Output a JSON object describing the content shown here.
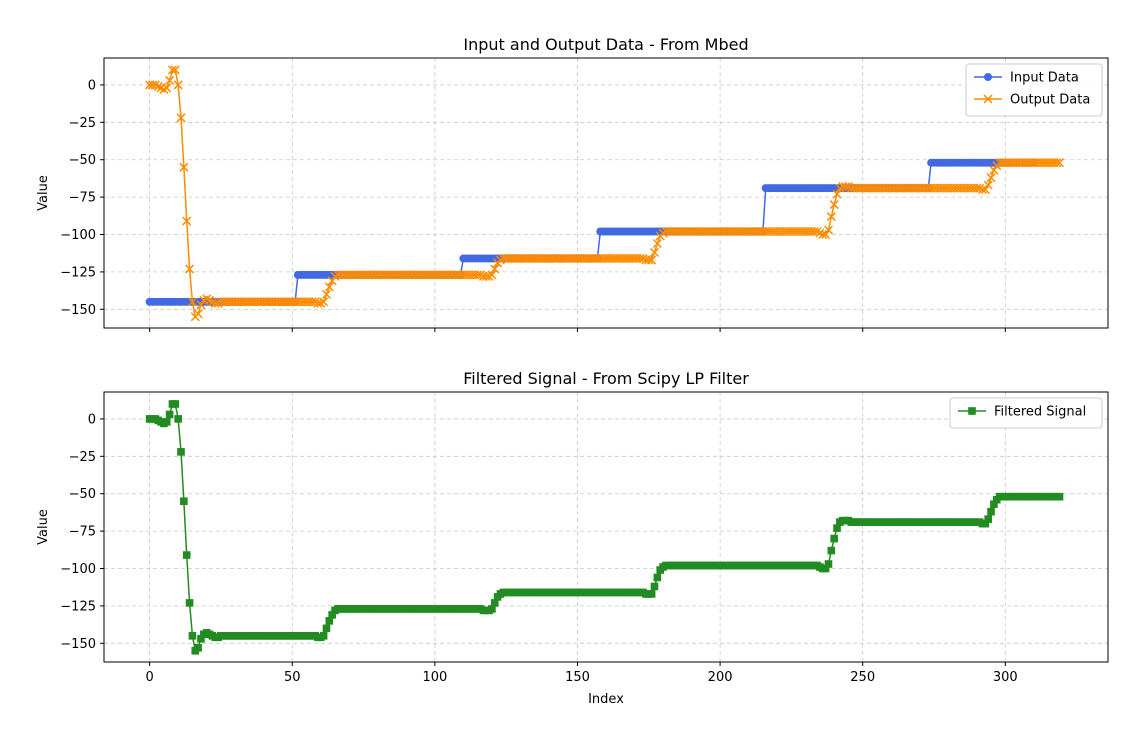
{
  "chart_data": [
    {
      "type": "line",
      "title": "Input and Output Data - From Mbed",
      "xlabel": "",
      "ylabel": "Value",
      "xlim": [
        -16,
        336
      ],
      "ylim": [
        -162.5,
        18
      ],
      "xticks": [
        0,
        50,
        100,
        150,
        200,
        250,
        300
      ],
      "xtick_labels_visible": false,
      "yticks": [
        0,
        -25,
        -50,
        -75,
        -100,
        -125,
        -150
      ],
      "grid": true,
      "legend": "top-right",
      "series": [
        {
          "name": "Input Data",
          "color": "#4169e1",
          "marker": "circle",
          "x_start": 0,
          "x_step": 1,
          "values": [
            -145,
            -145,
            -145,
            -145,
            -145,
            -145,
            -145,
            -145,
            -145,
            -145,
            -145,
            -145,
            -145,
            -145,
            -145,
            -145,
            -145,
            -145,
            -145,
            -145,
            -145,
            -145,
            -145,
            -145,
            -145,
            -145,
            -145,
            -145,
            -145,
            -145,
            -145,
            -145,
            -145,
            -145,
            -145,
            -145,
            -145,
            -145,
            -145,
            -145,
            -145,
            -145,
            -145,
            -145,
            -145,
            -145,
            -145,
            -145,
            -145,
            -145,
            -145,
            -145,
            -127,
            -127,
            -127,
            -127,
            -127,
            -127,
            -127,
            -127,
            -127,
            -127,
            -127,
            -127,
            -127,
            -127,
            -127,
            -127,
            -127,
            -127,
            -127,
            -127,
            -127,
            -127,
            -127,
            -127,
            -127,
            -127,
            -127,
            -127,
            -127,
            -127,
            -127,
            -127,
            -127,
            -127,
            -127,
            -127,
            -127,
            -127,
            -127,
            -127,
            -127,
            -127,
            -127,
            -127,
            -127,
            -127,
            -127,
            -127,
            -127,
            -127,
            -127,
            -127,
            -127,
            -127,
            -127,
            -127,
            -127,
            -127,
            -116,
            -116,
            -116,
            -116,
            -116,
            -116,
            -116,
            -116,
            -116,
            -116,
            -116,
            -116,
            -116,
            -116,
            -116,
            -116,
            -116,
            -116,
            -116,
            -116,
            -116,
            -116,
            -116,
            -116,
            -116,
            -116,
            -116,
            -116,
            -116,
            -116,
            -116,
            -116,
            -116,
            -116,
            -116,
            -116,
            -116,
            -116,
            -116,
            -116,
            -116,
            -116,
            -116,
            -116,
            -116,
            -116,
            -116,
            -116,
            -98,
            -98,
            -98,
            -98,
            -98,
            -98,
            -98,
            -98,
            -98,
            -98,
            -98,
            -98,
            -98,
            -98,
            -98,
            -98,
            -98,
            -98,
            -98,
            -98,
            -98,
            -98,
            -98,
            -98,
            -98,
            -98,
            -98,
            -98,
            -98,
            -98,
            -98,
            -98,
            -98,
            -98,
            -98,
            -98,
            -98,
            -98,
            -98,
            -98,
            -98,
            -98,
            -98,
            -98,
            -98,
            -98,
            -98,
            -98,
            -98,
            -98,
            -98,
            -98,
            -98,
            -98,
            -98,
            -98,
            -98,
            -98,
            -69,
            -69,
            -69,
            -69,
            -69,
            -69,
            -69,
            -69,
            -69,
            -69,
            -69,
            -69,
            -69,
            -69,
            -69,
            -69,
            -69,
            -69,
            -69,
            -69,
            -69,
            -69,
            -69,
            -69,
            -69,
            -69,
            -69,
            -69,
            -69,
            -69,
            -69,
            -69,
            -69,
            -69,
            -69,
            -69,
            -69,
            -69,
            -69,
            -69,
            -69,
            -69,
            -69,
            -69,
            -69,
            -69,
            -69,
            -69,
            -69,
            -69,
            -69,
            -69,
            -69,
            -69,
            -69,
            -69,
            -69,
            -69,
            -52,
            -52,
            -52,
            -52,
            -52,
            -52,
            -52,
            -52,
            -52,
            -52,
            -52,
            -52,
            -52,
            -52,
            -52,
            -52,
            -52,
            -52,
            -52,
            -52,
            -52,
            -52,
            -52,
            -52,
            -52,
            -52,
            -52,
            -52,
            -52,
            -52,
            -52,
            -52,
            -52,
            -52,
            -52,
            -52,
            -52
          ]
        },
        {
          "name": "Output Data",
          "color": "#ff8c00",
          "marker": "x",
          "x_start": 0,
          "x_step": 1,
          "values": [
            0,
            0,
            0,
            -1,
            -2,
            -3,
            -2,
            3,
            10,
            10,
            0,
            -22,
            -55,
            -91,
            -123,
            -145,
            -155,
            -153,
            -147,
            -144,
            -143,
            -144,
            -145,
            -146,
            -146,
            -145,
            -145,
            -145,
            -145,
            -145,
            -145,
            -145,
            -145,
            -145,
            -145,
            -145,
            -145,
            -145,
            -145,
            -145,
            -145,
            -145,
            -145,
            -145,
            -145,
            -145,
            -145,
            -145,
            -145,
            -145,
            -145,
            -145,
            -145,
            -145,
            -145,
            -145,
            -145,
            -145,
            -145,
            -146,
            -146,
            -145,
            -140,
            -135,
            -131,
            -128,
            -127,
            -127,
            -127,
            -127,
            -127,
            -127,
            -127,
            -127,
            -127,
            -127,
            -127,
            -127,
            -127,
            -127,
            -127,
            -127,
            -127,
            -127,
            -127,
            -127,
            -127,
            -127,
            -127,
            -127,
            -127,
            -127,
            -127,
            -127,
            -127,
            -127,
            -127,
            -127,
            -127,
            -127,
            -127,
            -127,
            -127,
            -127,
            -127,
            -127,
            -127,
            -127,
            -127,
            -127,
            -127,
            -127,
            -127,
            -127,
            -127,
            -127,
            -127,
            -128,
            -128,
            -128,
            -127,
            -123,
            -119,
            -117,
            -116,
            -116,
            -116,
            -116,
            -116,
            -116,
            -116,
            -116,
            -116,
            -116,
            -116,
            -116,
            -116,
            -116,
            -116,
            -116,
            -116,
            -116,
            -116,
            -116,
            -116,
            -116,
            -116,
            -116,
            -116,
            -116,
            -116,
            -116,
            -116,
            -116,
            -116,
            -116,
            -116,
            -116,
            -116,
            -116,
            -116,
            -116,
            -116,
            -116,
            -116,
            -116,
            -116,
            -116,
            -116,
            -116,
            -116,
            -116,
            -116,
            -116,
            -117,
            -117,
            -117,
            -112,
            -106,
            -101,
            -99,
            -98,
            -98,
            -98,
            -98,
            -98,
            -98,
            -98,
            -98,
            -98,
            -98,
            -98,
            -98,
            -98,
            -98,
            -98,
            -98,
            -98,
            -98,
            -98,
            -98,
            -98,
            -98,
            -98,
            -98,
            -98,
            -98,
            -98,
            -98,
            -98,
            -98,
            -98,
            -98,
            -98,
            -98,
            -98,
            -98,
            -98,
            -98,
            -98,
            -98,
            -98,
            -98,
            -98,
            -98,
            -98,
            -98,
            -98,
            -98,
            -98,
            -98,
            -98,
            -98,
            -98,
            -98,
            -99,
            -100,
            -100,
            -97,
            -88,
            -80,
            -73,
            -69,
            -68,
            -68,
            -68,
            -69,
            -69,
            -69,
            -69,
            -69,
            -69,
            -69,
            -69,
            -69,
            -69,
            -69,
            -69,
            -69,
            -69,
            -69,
            -69,
            -69,
            -69,
            -69,
            -69,
            -69,
            -69,
            -69,
            -69,
            -69,
            -69,
            -69,
            -69,
            -69,
            -69,
            -69,
            -69,
            -69,
            -69,
            -69,
            -69,
            -69,
            -69,
            -69,
            -69,
            -69,
            -69,
            -69,
            -69,
            -69,
            -69,
            -70,
            -70,
            -67,
            -62,
            -57,
            -54,
            -52,
            -52,
            -52,
            -52,
            -52,
            -52,
            -52,
            -52,
            -52,
            -52,
            -52,
            -52,
            -52,
            -52,
            -52,
            -52,
            -52,
            -52,
            -52,
            -52,
            -52,
            -52
          ]
        }
      ]
    },
    {
      "type": "line",
      "title": "Filtered Signal - From Scipy LP Filter",
      "xlabel": "Index",
      "ylabel": "Value",
      "xlim": [
        -16,
        336
      ],
      "ylim": [
        -162.5,
        18
      ],
      "xticks": [
        0,
        50,
        100,
        150,
        200,
        250,
        300
      ],
      "xtick_labels_visible": true,
      "yticks": [
        0,
        -25,
        -50,
        -75,
        -100,
        -125,
        -150
      ],
      "grid": true,
      "legend": "top-right",
      "series": [
        {
          "name": "Filtered Signal",
          "color": "#228b22",
          "marker": "square",
          "x_start": 0,
          "x_step": 1,
          "values": [
            0,
            0,
            0,
            -1,
            -2,
            -3,
            -2,
            3,
            10,
            10,
            0,
            -22,
            -55,
            -91,
            -123,
            -145,
            -155,
            -153,
            -147,
            -144,
            -143,
            -144,
            -145,
            -146,
            -146,
            -145,
            -145,
            -145,
            -145,
            -145,
            -145,
            -145,
            -145,
            -145,
            -145,
            -145,
            -145,
            -145,
            -145,
            -145,
            -145,
            -145,
            -145,
            -145,
            -145,
            -145,
            -145,
            -145,
            -145,
            -145,
            -145,
            -145,
            -145,
            -145,
            -145,
            -145,
            -145,
            -145,
            -145,
            -146,
            -146,
            -145,
            -140,
            -135,
            -131,
            -128,
            -127,
            -127,
            -127,
            -127,
            -127,
            -127,
            -127,
            -127,
            -127,
            -127,
            -127,
            -127,
            -127,
            -127,
            -127,
            -127,
            -127,
            -127,
            -127,
            -127,
            -127,
            -127,
            -127,
            -127,
            -127,
            -127,
            -127,
            -127,
            -127,
            -127,
            -127,
            -127,
            -127,
            -127,
            -127,
            -127,
            -127,
            -127,
            -127,
            -127,
            -127,
            -127,
            -127,
            -127,
            -127,
            -127,
            -127,
            -127,
            -127,
            -127,
            -127,
            -128,
            -128,
            -128,
            -127,
            -123,
            -119,
            -117,
            -116,
            -116,
            -116,
            -116,
            -116,
            -116,
            -116,
            -116,
            -116,
            -116,
            -116,
            -116,
            -116,
            -116,
            -116,
            -116,
            -116,
            -116,
            -116,
            -116,
            -116,
            -116,
            -116,
            -116,
            -116,
            -116,
            -116,
            -116,
            -116,
            -116,
            -116,
            -116,
            -116,
            -116,
            -116,
            -116,
            -116,
            -116,
            -116,
            -116,
            -116,
            -116,
            -116,
            -116,
            -116,
            -116,
            -116,
            -116,
            -116,
            -116,
            -117,
            -117,
            -117,
            -112,
            -106,
            -101,
            -99,
            -98,
            -98,
            -98,
            -98,
            -98,
            -98,
            -98,
            -98,
            -98,
            -98,
            -98,
            -98,
            -98,
            -98,
            -98,
            -98,
            -98,
            -98,
            -98,
            -98,
            -98,
            -98,
            -98,
            -98,
            -98,
            -98,
            -98,
            -98,
            -98,
            -98,
            -98,
            -98,
            -98,
            -98,
            -98,
            -98,
            -98,
            -98,
            -98,
            -98,
            -98,
            -98,
            -98,
            -98,
            -98,
            -98,
            -98,
            -98,
            -98,
            -98,
            -98,
            -98,
            -98,
            -98,
            -99,
            -100,
            -100,
            -97,
            -88,
            -80,
            -73,
            -69,
            -68,
            -68,
            -68,
            -69,
            -69,
            -69,
            -69,
            -69,
            -69,
            -69,
            -69,
            -69,
            -69,
            -69,
            -69,
            -69,
            -69,
            -69,
            -69,
            -69,
            -69,
            -69,
            -69,
            -69,
            -69,
            -69,
            -69,
            -69,
            -69,
            -69,
            -69,
            -69,
            -69,
            -69,
            -69,
            -69,
            -69,
            -69,
            -69,
            -69,
            -69,
            -69,
            -69,
            -69,
            -69,
            -69,
            -69,
            -69,
            -69,
            -70,
            -70,
            -67,
            -62,
            -57,
            -54,
            -52,
            -52,
            -52,
            -52,
            -52,
            -52,
            -52,
            -52,
            -52,
            -52,
            -52,
            -52,
            -52,
            -52,
            -52,
            -52,
            -52,
            -52,
            -52,
            -52,
            -52,
            -52
          ]
        }
      ]
    }
  ]
}
